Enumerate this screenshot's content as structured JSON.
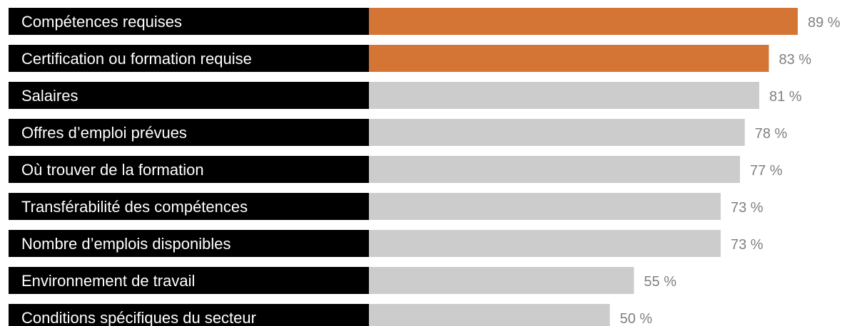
{
  "chart_data": {
    "type": "bar",
    "orientation": "horizontal",
    "categories": [
      "Compétences requises",
      "Certification ou formation requise",
      "Salaires",
      "Offres d’emploi prévues",
      "Où trouver de la formation",
      "Transférabilité des compétences",
      "Nombre d’emplois disponibles",
      "Environnement de travail",
      "Conditions spécifiques du secteur"
    ],
    "values": [
      89,
      83,
      81,
      78,
      77,
      73,
      73,
      55,
      50
    ],
    "value_labels": [
      "89 %",
      "83 %",
      "81 %",
      "78 %",
      "77 %",
      "73 %",
      "73 %",
      "55 %",
      "50 %"
    ],
    "highlighted": [
      true,
      true,
      false,
      false,
      false,
      false,
      false,
      false,
      false
    ],
    "colors": {
      "highlight": "#D57535",
      "normal": "#CCCCCC",
      "label_background": "#000000",
      "label_text": "#FFFFFF",
      "value_text": "#808080"
    },
    "xlim": [
      0,
      100
    ],
    "grid": false,
    "legend": "none"
  }
}
